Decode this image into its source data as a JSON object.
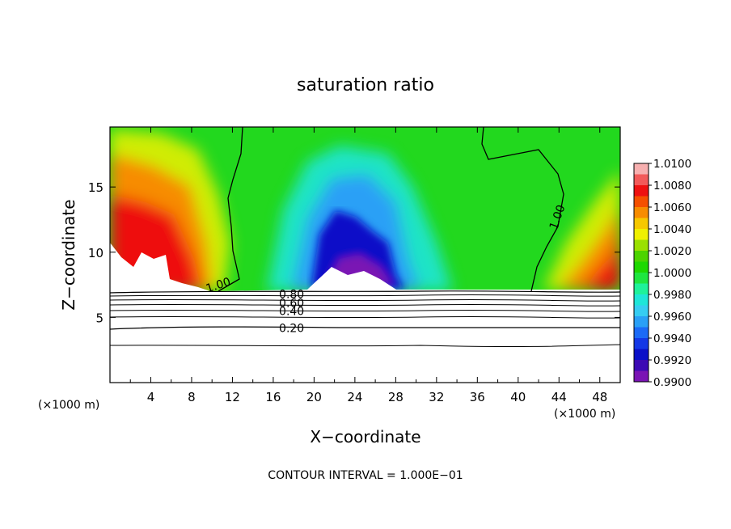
{
  "chart_data": {
    "type": "heatmap",
    "title": "saturation ratio",
    "xlabel": "X−coordinate",
    "ylabel": "Z−coordinate",
    "x_unit_left": "(×1000 m)",
    "x_unit_right": "(×1000 m)",
    "footer": "CONTOUR INTERVAL = 1.000E−01",
    "xlim": [
      0,
      50
    ],
    "ylim": [
      0,
      19.6
    ],
    "x_ticks": [
      4,
      8,
      12,
      16,
      20,
      24,
      28,
      32,
      36,
      40,
      44,
      48
    ],
    "y_ticks": [
      5,
      10,
      15
    ],
    "colorbar": {
      "labels": [
        "1.0100",
        "1.0080",
        "1.0060",
        "1.0040",
        "1.0020",
        "1.0000",
        "0.9980",
        "0.9960",
        "0.9940",
        "0.9920",
        "0.9900"
      ],
      "colors": [
        "#f7b0b0",
        "#f25a5a",
        "#ee1111",
        "#f55000",
        "#f78c00",
        "#f6c800",
        "#eff000",
        "#9ae000",
        "#4cd400",
        "#1ed800",
        "#1ee640",
        "#1ef29a",
        "#1ee6d8",
        "#36cdf2",
        "#2aa0f6",
        "#1c6af6",
        "#1438e6",
        "#0a10c8",
        "#3c0ab4",
        "#7a14b4"
      ]
    },
    "contour_labels": [
      {
        "text": "1.00",
        "x": 10.6,
        "y": 7.5
      },
      {
        "text": "1.00",
        "x": 43.8,
        "y": 12.7
      },
      {
        "text": "0.80",
        "x": 17.8,
        "y": 6.8
      },
      {
        "text": "0.60",
        "x": 17.8,
        "y": 6.1
      },
      {
        "text": "0.40",
        "x": 17.8,
        "y": 5.5
      },
      {
        "text": "0.20",
        "x": 17.8,
        "y": 4.2
      }
    ]
  }
}
